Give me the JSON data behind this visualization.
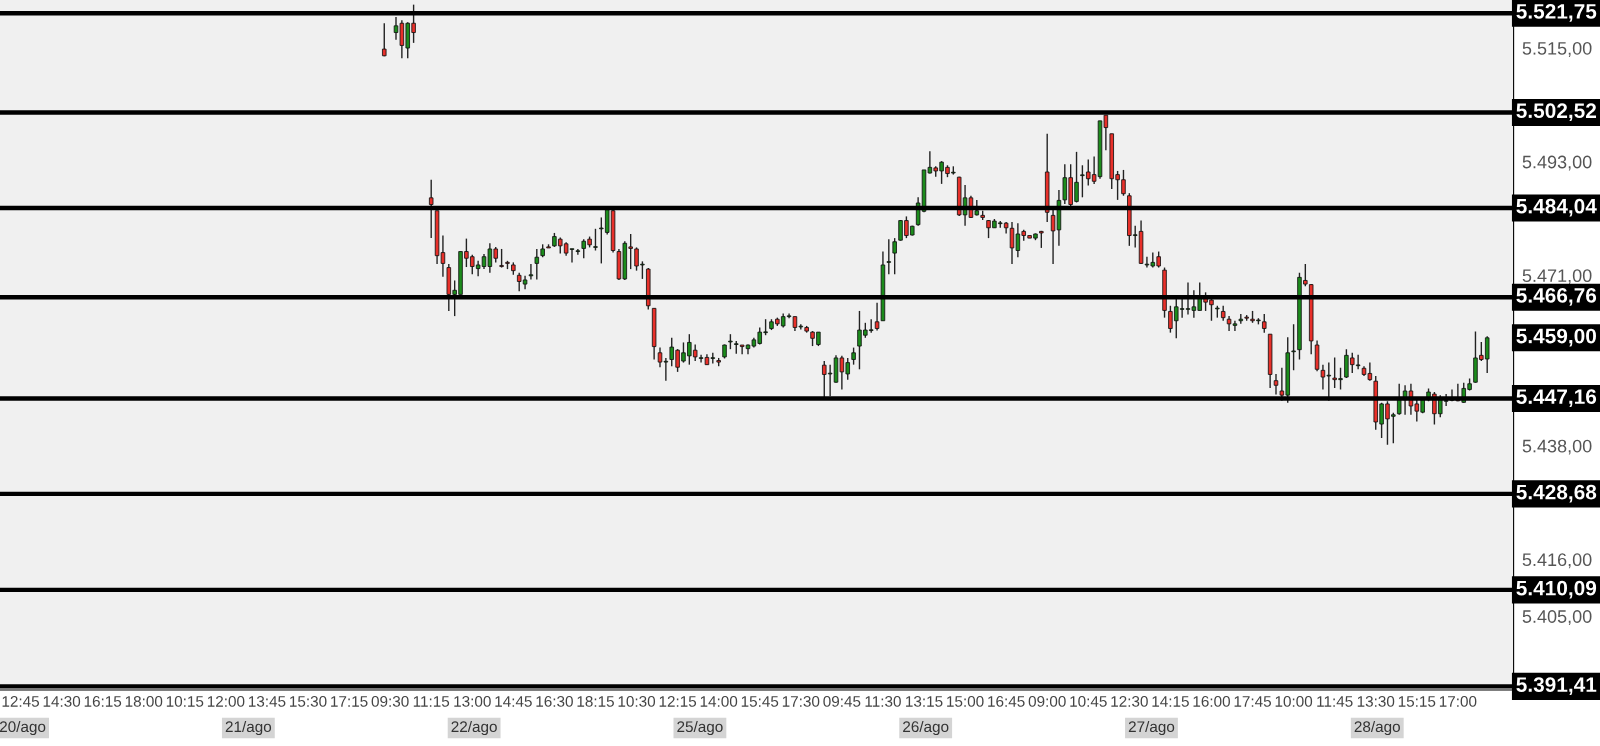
{
  "chart_data": {
    "type": "candlestick",
    "categories": [
      null,
      "12:45",
      null,
      null,
      null,
      null,
      null,
      null,
      "14:30",
      null,
      null,
      null,
      null,
      null,
      null,
      "16:15",
      null,
      null,
      null,
      null,
      null,
      null,
      "18:00",
      null,
      null,
      null,
      null,
      null,
      null,
      "10:15",
      null,
      null,
      null,
      null,
      null,
      null,
      "12:00",
      null,
      null,
      null,
      null,
      null,
      null,
      "13:45",
      null,
      null,
      null,
      null,
      null,
      null,
      "15:30",
      null,
      null,
      null,
      null,
      null,
      null,
      "17:15",
      null,
      null,
      null,
      null,
      null,
      null,
      "09:30",
      null,
      null,
      null,
      null,
      null,
      null,
      "11:15",
      null,
      null,
      null,
      null,
      null,
      null,
      "13:00",
      null,
      null,
      null,
      null,
      null,
      null,
      "14:45",
      null,
      null,
      null,
      null,
      null,
      null,
      "16:30",
      null,
      null,
      null,
      null,
      null,
      null,
      "18:15",
      null,
      null,
      null,
      null,
      null,
      null,
      "10:30",
      null,
      null,
      null,
      null,
      null,
      null,
      "12:15",
      null,
      null,
      null,
      null,
      null,
      null,
      "14:00",
      null,
      null,
      null,
      null,
      null,
      null,
      "15:45",
      null,
      null,
      null,
      null,
      null,
      null,
      "17:30",
      null,
      null,
      null,
      null,
      null,
      null,
      "09:45",
      null,
      null,
      null,
      null,
      null,
      null,
      "11:30",
      null,
      null,
      null,
      null,
      null,
      null,
      "13:15",
      null,
      null,
      null,
      null,
      null,
      null,
      "15:00",
      null,
      null,
      null,
      null,
      null,
      null,
      "16:45",
      null,
      null,
      null,
      null,
      null,
      null,
      "09:00",
      null,
      null,
      null,
      null,
      null,
      null,
      "10:45",
      null,
      null,
      null,
      null,
      null,
      null,
      "12:30",
      null,
      null,
      null,
      null,
      null,
      null,
      "14:15",
      null,
      null,
      null,
      null,
      null,
      null,
      "16:00",
      null,
      null,
      null,
      null,
      null,
      null,
      "17:45",
      null,
      null,
      null,
      null,
      null,
      null,
      "10:00",
      null,
      null,
      null,
      null,
      null,
      null,
      "11:45",
      null,
      null,
      null,
      null,
      null,
      null,
      "13:30",
      null,
      null,
      null,
      null,
      null,
      null,
      "15:15",
      null,
      null,
      null,
      null,
      null,
      null,
      "17:00",
      null,
      null,
      null,
      null,
      null
    ],
    "ohlc": [
      null,
      null,
      null,
      null,
      null,
      null,
      null,
      null,
      null,
      null,
      null,
      null,
      null,
      null,
      null,
      null,
      null,
      null,
      null,
      null,
      null,
      null,
      null,
      null,
      null,
      null,
      null,
      null,
      null,
      null,
      null,
      null,
      null,
      null,
      null,
      null,
      null,
      null,
      null,
      null,
      null,
      null,
      null,
      null,
      null,
      null,
      null,
      null,
      null,
      null,
      null,
      null,
      null,
      null,
      null,
      null,
      null,
      null,
      null,
      null,
      null,
      null,
      null,
      [
        5514.8,
        5519.8,
        5513.4,
        5513.5
      ],
      null,
      [
        5518,
        5521,
        5516.6,
        5519.3
      ],
      [
        5519.8,
        5520.4,
        5513,
        5515.5
      ],
      [
        5515,
        5520,
        5513,
        5519.8
      ],
      [
        5519.8,
        5523.4,
        5516,
        5518
      ],
      null,
      null,
      [
        5486,
        5489.5,
        5478.2,
        5484.7
      ],
      [
        5483.5,
        5483.5,
        5473.2,
        5474.8
      ],
      [
        5475.4,
        5478.7,
        5470.7,
        5473.3
      ],
      [
        5472.5,
        5473.2,
        5464.1,
        5467.3
      ],
      [
        5467.3,
        5470,
        5463.1,
        5468.1
      ],
      [
        5467.3,
        5475.6,
        5467.3,
        5475.6
      ],
      [
        5475.6,
        5478.1,
        5472.6,
        5474.3
      ],
      [
        5474.6,
        5475,
        5471.2,
        5472.7
      ],
      [
        5472.3,
        5473.8,
        5470.8,
        5473
      ],
      [
        5472.7,
        5475.1,
        5472.2,
        5474.6
      ],
      [
        5472.7,
        5477.2,
        5471.5,
        5476.1
      ],
      [
        5476.1,
        5476.5,
        5473.5,
        5474.3
      ],
      [
        5472.9,
        5476.1,
        5472.5,
        5472.7
      ],
      [
        5473.5,
        5473.8,
        5472.2,
        5473.3
      ],
      [
        5473,
        5473.5,
        5471.1,
        5471.9
      ],
      [
        5471,
        5471.5,
        5467.9,
        5469.8
      ],
      [
        5469.3,
        5470.9,
        5468.3,
        5470.1
      ],
      [
        5470.9,
        5473.2,
        5470.2,
        5471.1
      ],
      [
        5473.3,
        5476.1,
        5470.2,
        5474.5
      ],
      [
        5474.8,
        5477,
        5474.5,
        5476.1
      ],
      [
        5476.5,
        5477,
        5476.3,
        5476.3
      ],
      [
        5476.7,
        5479.2,
        5476.5,
        5478.5
      ],
      [
        5478,
        5478.3,
        5475.2,
        5476.7
      ],
      [
        5477.1,
        5477.4,
        5474.8,
        5475.3
      ],
      [
        5476,
        5476.1,
        5473.5,
        5476
      ],
      [
        5475.6,
        5476.1,
        5475,
        5475.6
      ],
      [
        5476.2,
        5478,
        5474.3,
        5477.6
      ],
      [
        5478,
        5478.5,
        5476.4,
        5476.9
      ],
      [
        5476.4,
        5480,
        5475.8,
        5476.4
      ],
      [
        5480,
        5482.2,
        5473.3,
        5480
      ],
      [
        5479.3,
        5483.9,
        5478.9,
        5483.7
      ],
      [
        5483.5,
        5483.7,
        5475.4,
        5475.8
      ],
      [
        5475.6,
        5476.1,
        5470.1,
        5470.3
      ],
      [
        5470.3,
        5477.6,
        5470.1,
        5477.2
      ],
      [
        5476.5,
        5479,
        5472.2,
        5476.2
      ],
      [
        5476.1,
        5476.4,
        5471.9,
        5472.8
      ],
      [
        5473,
        5473.7,
        5470.3,
        5473
      ],
      [
        5472.2,
        5472.4,
        5464.4,
        5465.1
      ],
      [
        5464.6,
        5464.6,
        5454.7,
        5457.2
      ],
      [
        5456,
        5457,
        5453.2,
        5454.2
      ],
      [
        5454.2,
        5455,
        5450.6,
        5454.2
      ],
      [
        5454.7,
        5458.9,
        5453.4,
        5457.1
      ],
      [
        5456.5,
        5456.7,
        5452.3,
        5453.2
      ],
      [
        5454.4,
        5458,
        5454.1,
        5456
      ],
      [
        5455.4,
        5459.6,
        5453.7,
        5458
      ],
      [
        5456.5,
        5457.6,
        5454.4,
        5455.2
      ],
      [
        5454.9,
        5455.6,
        5454.1,
        5454.9
      ],
      [
        5455.1,
        5455.7,
        5453.7,
        5453.7
      ],
      [
        5454.9,
        5456,
        5453.9,
        5454.9
      ],
      [
        5454.5,
        5455,
        5453.4,
        5454.2
      ],
      [
        5455.2,
        5457.6,
        5454.9,
        5457.5
      ],
      [
        5458.1,
        5459.6,
        5456.7,
        5458.1
      ],
      [
        5457.6,
        5458.3,
        5455.8,
        5457.6
      ],
      [
        5457.5,
        5457.5,
        5455.7,
        5457.2
      ],
      [
        5456.8,
        5457.6,
        5455.7,
        5457.5
      ],
      [
        5457.3,
        5458.9,
        5457,
        5458.5
      ],
      [
        5457.8,
        5460.9,
        5457.6,
        5460
      ],
      [
        5459.9,
        5462.5,
        5459.4,
        5459.9
      ],
      [
        5460.7,
        5462.5,
        5460.4,
        5462
      ],
      [
        5462.5,
        5462.8,
        5461.2,
        5461.6
      ],
      [
        5461.2,
        5463.6,
        5460.9,
        5463
      ],
      [
        5463,
        5463.6,
        5462.7,
        5463
      ],
      [
        5463,
        5463,
        5460.2,
        5460.9
      ],
      [
        5461,
        5461.5,
        5460.5,
        5461
      ],
      [
        5460.9,
        5461.2,
        5459.9,
        5460.2
      ],
      [
        5460,
        5460.2,
        5457.3,
        5458.8
      ],
      [
        5457.6,
        5460,
        5457.3,
        5460
      ],
      [
        5453.6,
        5454.4,
        5447.3,
        5451.8
      ],
      [
        5451.9,
        5453.7,
        5447.6,
        5451.9
      ],
      [
        5450.3,
        5455.5,
        5450.2,
        5455
      ],
      [
        5455,
        5455.4,
        5448.9,
        5452.3
      ],
      [
        5451.9,
        5455,
        5450.8,
        5454.1
      ],
      [
        5454.7,
        5457,
        5453.7,
        5456
      ],
      [
        5457.3,
        5464.1,
        5452.8,
        5460.4
      ],
      [
        5459.4,
        5461.8,
        5458.9,
        5460.4
      ],
      [
        5460.3,
        5462.5,
        5459.9,
        5460.3
      ],
      [
        5462,
        5465.7,
        5460.3,
        5460.7
      ],
      [
        5462.2,
        5475.6,
        5462.2,
        5473
      ],
      [
        5473.5,
        5478,
        5471.2,
        5473.5
      ],
      [
        5475.3,
        5478.2,
        5471.2,
        5477.5
      ],
      [
        5477.8,
        5481.7,
        5477.7,
        5481.6
      ],
      [
        5481.6,
        5482.4,
        5478.2,
        5478.7
      ],
      [
        5478.8,
        5480.6,
        5478.7,
        5480.5
      ],
      [
        5480.8,
        5486.1,
        5480.6,
        5485
      ],
      [
        5483.4,
        5491.4,
        5483.2,
        5491.4
      ],
      [
        5490.8,
        5495,
        5490.7,
        5491.9
      ],
      [
        5491.8,
        5492.1,
        5490.1,
        5491.2
      ],
      [
        5491.2,
        5493.1,
        5488.7,
        5492.9
      ],
      [
        5491.9,
        5492.3,
        5490,
        5490.7
      ],
      [
        5490.8,
        5492.1,
        5490.5,
        5490.8
      ],
      [
        5490,
        5490.1,
        5482.5,
        5482.7
      ],
      [
        5482.7,
        5488.5,
        5480.6,
        5486
      ],
      [
        5486,
        5486.4,
        5482.1,
        5482.2
      ],
      [
        5482.7,
        5485.6,
        5482.6,
        5483.5
      ],
      [
        5482.6,
        5483.5,
        5481.7,
        5482.2
      ],
      [
        5481.6,
        5481.7,
        5478.2,
        5480.2
      ],
      [
        5480.2,
        5481.9,
        5480.2,
        5481.5
      ],
      [
        5481,
        5481.5,
        5480.2,
        5481
      ],
      [
        5481.1,
        5481.3,
        5479.1,
        5480.2
      ],
      [
        5480.1,
        5481.3,
        5473.2,
        5476.3
      ],
      [
        5475.8,
        5481.1,
        5474.5,
        5479
      ],
      [
        5479.5,
        5479.8,
        5477.7,
        5478.7
      ],
      [
        5478.7,
        5478.7,
        5478.2,
        5478.2
      ],
      [
        5478.2,
        5479.1,
        5477.8,
        5479
      ],
      [
        5479.5,
        5479.6,
        5476.3,
        5479.2
      ],
      [
        5491,
        5498.4,
        5481.3,
        5483.2
      ],
      [
        5482.6,
        5483.9,
        5473.2,
        5479.6
      ],
      [
        5479.8,
        5487.5,
        5476.7,
        5485.5
      ],
      [
        5485.6,
        5492.5,
        5484.8,
        5489.9
      ],
      [
        5489.9,
        5492.5,
        5484.3,
        5484.7
      ],
      [
        5485.3,
        5494.9,
        5485.1,
        5489
      ],
      [
        5490.3,
        5492.3,
        5486.1,
        5490.3
      ],
      [
        5491,
        5493.4,
        5488.4,
        5489.7
      ],
      [
        5490.5,
        5494,
        5488.7,
        5489.2
      ],
      [
        5490.1,
        5500.9,
        5489.7,
        5500.9
      ],
      [
        5502,
        5502,
        5495.2,
        5499.6
      ],
      [
        5498.4,
        5498.4,
        5487.7,
        5489.7
      ],
      [
        5490.5,
        5491.2,
        5485.6,
        5489.5
      ],
      [
        5489.5,
        5491.4,
        5486.4,
        5486.8
      ],
      [
        5486.4,
        5486.9,
        5476.7,
        5478.7
      ],
      [
        5478.7,
        5480.6,
        5476.4,
        5478.7
      ],
      [
        5479.5,
        5481.6,
        5473.2,
        5473.3
      ],
      [
        5473,
        5474.6,
        5472.5,
        5473
      ],
      [
        5472.8,
        5475.4,
        5472.5,
        5473.5
      ],
      [
        5474.6,
        5475.6,
        5472.5,
        5472.8
      ],
      [
        5472,
        5472.5,
        5462.8,
        5464.2
      ],
      [
        5464,
        5465.1,
        5459.9,
        5460.7
      ],
      [
        5462.2,
        5466.7,
        5458.8,
        5464.9
      ],
      [
        5464.4,
        5466.4,
        5462.8,
        5464.4
      ],
      [
        5464.4,
        5469.6,
        5463.4,
        5464.4
      ],
      [
        5464.2,
        5468.1,
        5462.8,
        5464.9
      ],
      [
        5464.2,
        5469.6,
        5464.2,
        5466.7
      ],
      [
        5466.7,
        5467.7,
        5464.1,
        5465.8
      ],
      [
        5466.2,
        5466.4,
        5462.2,
        5465.3
      ],
      [
        5464.5,
        5465.1,
        5462.8,
        5464.5
      ],
      [
        5464,
        5465.1,
        5462.2,
        5462.8
      ],
      [
        5462.5,
        5463.1,
        5460.2,
        5461.6
      ],
      [
        5461.3,
        5462.2,
        5460.2,
        5461.6
      ],
      [
        5462.2,
        5463.5,
        5461.6,
        5462.5
      ],
      [
        5462.9,
        5463.3,
        5462.2,
        5462.7
      ],
      [
        5462.5,
        5464.1,
        5461.8,
        5462.2
      ],
      [
        5462.2,
        5462.7,
        5461.5,
        5462.2
      ],
      [
        5462,
        5463.5,
        5459.9,
        5460.7
      ],
      [
        5459.6,
        5459.6,
        5449.2,
        5451.8
      ],
      [
        5450.6,
        5451.9,
        5447.9,
        5449.7
      ],
      [
        5448.6,
        5453.1,
        5446.7,
        5447.8
      ],
      [
        5447.8,
        5459,
        5446.3,
        5456
      ],
      [
        5456.2,
        5461.5,
        5452.6,
        5456.2
      ],
      [
        5456.6,
        5471.5,
        5454.7,
        5470.6
      ],
      [
        5470,
        5473.2,
        5468.9,
        5469.3
      ],
      [
        5469.2,
        5469.3,
        5455.7,
        5458.3
      ],
      [
        5457.5,
        5458.4,
        5452.4,
        5452.8
      ],
      [
        5452.6,
        5453.7,
        5448.9,
        5451.3
      ],
      [
        5451.5,
        5454.1,
        5446.7,
        5451.5
      ],
      [
        5451.1,
        5455.1,
        5449.2,
        5450.8
      ],
      [
        5450.8,
        5453.1,
        5448.9,
        5451
      ],
      [
        5451.3,
        5456.7,
        5451.1,
        5455.5
      ],
      [
        5455,
        5456,
        5452.1,
        5453.7
      ],
      [
        5453.5,
        5455.6,
        5452.8,
        5453.5
      ],
      [
        5453,
        5453.4,
        5451.5,
        5451.8
      ],
      [
        5452,
        5454.1,
        5450.6,
        5450.8
      ],
      [
        5450.5,
        5451.5,
        5441.1,
        5442.6
      ],
      [
        5442.2,
        5446.3,
        5439.5,
        5446.1
      ],
      [
        5446.1,
        5446.6,
        5438.2,
        5443.2
      ],
      [
        5443.7,
        5444.4,
        5438.5,
        5444
      ],
      [
        5444.2,
        5450,
        5444,
        5447.3
      ],
      [
        5446.9,
        5449.7,
        5444,
        5448.6
      ],
      [
        5448.6,
        5450,
        5444,
        5445.7
      ],
      [
        5446.1,
        5446.9,
        5442.7,
        5444.7
      ],
      [
        5444.5,
        5447.3,
        5444.3,
        5446.9
      ],
      [
        5446.9,
        5449.1,
        5446.6,
        5448.4
      ],
      [
        5448,
        5448.4,
        5442.1,
        5444.2
      ],
      [
        5444.2,
        5447.8,
        5443.5,
        5447.3
      ],
      [
        5446.6,
        5448,
        5445.7,
        5446.6
      ],
      [
        5446.8,
        5448.9,
        5446.6,
        5447.1
      ],
      [
        5446.9,
        5450,
        5446.6,
        5446.7
      ],
      [
        5446.4,
        5450.2,
        5446.3,
        5449.1
      ],
      [
        5448.9,
        5451,
        5448.7,
        5450
      ],
      [
        5450.3,
        5460.1,
        5450.2,
        5455
      ],
      [
        5455.5,
        5458.1,
        5454.4,
        5454.7
      ],
      [
        5454.8,
        5459.2,
        5452.1,
        5458.9
      ]
    ],
    "ylim": [
      5390.7,
      5524.3
    ],
    "yticks": [
      {
        "value": 5515,
        "label": "5.515,00"
      },
      {
        "value": 5493,
        "label": "5.493,00"
      },
      {
        "value": 5471,
        "label": "5.471,00"
      },
      {
        "value": 5438,
        "label": "5.438,00"
      },
      {
        "value": 5416,
        "label": "5.416,00"
      },
      {
        "value": 5405,
        "label": "5.405,00"
      }
    ],
    "ref_lines": [
      {
        "axis": "y",
        "value": 5521.75,
        "label": "5.521,75",
        "color": "#000000"
      },
      {
        "axis": "y",
        "value": 5502.52,
        "label": "5.502,52",
        "color": "#000000"
      },
      {
        "axis": "y",
        "value": 5484.04,
        "label": "5.484,04",
        "color": "#000000"
      },
      {
        "axis": "y",
        "value": 5466.76,
        "label": "5.466,76",
        "color": "#000000"
      },
      {
        "axis": "y",
        "value": 5447.16,
        "label": "5.447,16",
        "color": "#000000"
      },
      {
        "axis": "y",
        "value": 5428.68,
        "label": "5.428,68",
        "color": "#000000"
      },
      {
        "axis": "y",
        "value": 5410.09,
        "label": "5.410,09",
        "color": "#000000"
      },
      {
        "axis": "y",
        "value": 5391.41,
        "label": "5.391,41",
        "color": "#000000"
      }
    ],
    "annotations": [
      "5.459,00",
      "20/ago",
      "21/ago",
      "22/ago",
      "25/ago",
      "26/ago",
      "27/ago",
      "28/ago"
    ]
  }
}
